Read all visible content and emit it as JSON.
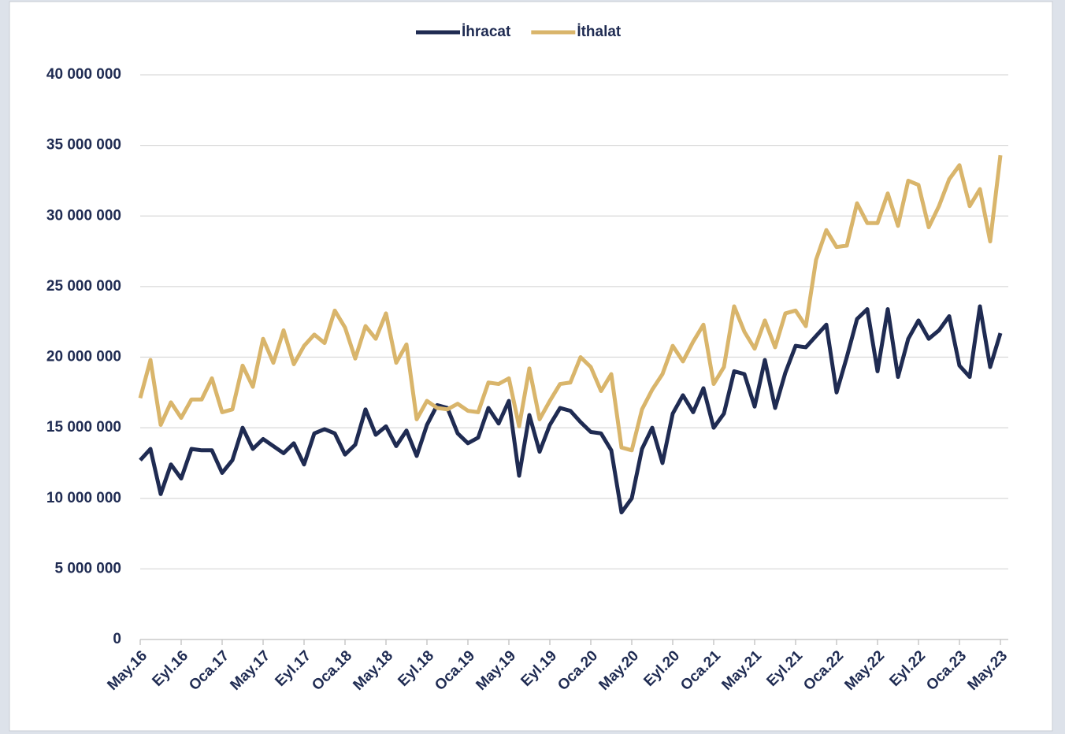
{
  "chart_data": {
    "type": "line",
    "legend": "top",
    "grid": true,
    "categories": [
      "May.16",
      null,
      null,
      null,
      "Eyl.16",
      null,
      null,
      null,
      "Oca.17",
      null,
      null,
      null,
      "May.17",
      null,
      null,
      null,
      "Eyl.17",
      null,
      null,
      null,
      "Oca.18",
      null,
      null,
      null,
      "May.18",
      null,
      null,
      null,
      "Eyl.18",
      null,
      null,
      null,
      "Oca.19",
      null,
      null,
      null,
      "May.19",
      null,
      null,
      null,
      "Eyl.19",
      null,
      null,
      null,
      "Oca.20",
      null,
      null,
      null,
      "May.20",
      null,
      null,
      null,
      "Eyl.20",
      null,
      null,
      null,
      "Oca.21",
      null,
      null,
      null,
      "May.21",
      null,
      null,
      null,
      "Eyl.21",
      null,
      null,
      null,
      "Oca.22",
      null,
      null,
      null,
      "May.22",
      null,
      null,
      null,
      "Eyl.22",
      null,
      null,
      null,
      "Oca.23",
      null,
      null,
      null,
      "May.23"
    ],
    "ylim": [
      0,
      40000000
    ],
    "yticks": [
      {
        "value": 0,
        "label": "0"
      },
      {
        "value": 5000000,
        "label": "5 000 000"
      },
      {
        "value": 10000000,
        "label": "10 000 000"
      },
      {
        "value": 15000000,
        "label": "15 000 000"
      },
      {
        "value": 20000000,
        "label": "20 000 000"
      },
      {
        "value": 25000000,
        "label": "25 000 000"
      },
      {
        "value": 30000000,
        "label": "30 000 000"
      },
      {
        "value": 35000000,
        "label": "35 000 000"
      },
      {
        "value": 40000000,
        "label": "40 000 000"
      }
    ],
    "series": [
      {
        "name": "İhracat",
        "color": "#1f2b52",
        "values": [
          12700000,
          13500000,
          10300000,
          12400000,
          11400000,
          13500000,
          13400000,
          13400000,
          11800000,
          12700000,
          15000000,
          13500000,
          14200000,
          13700000,
          13200000,
          13900000,
          12400000,
          14600000,
          14900000,
          14600000,
          13100000,
          13800000,
          16300000,
          14500000,
          15100000,
          13700000,
          14800000,
          13000000,
          15200000,
          16600000,
          16400000,
          14600000,
          13900000,
          14300000,
          16400000,
          15300000,
          16900000,
          11600000,
          15900000,
          13300000,
          15200000,
          16400000,
          16200000,
          15400000,
          14700000,
          14600000,
          13400000,
          9000000,
          10000000,
          13500000,
          15000000,
          12500000,
          16000000,
          17300000,
          16100000,
          17800000,
          15000000,
          16000000,
          19000000,
          18800000,
          16500000,
          19800000,
          16400000,
          18900000,
          20800000,
          20700000,
          21500000,
          22300000,
          17500000,
          20000000,
          22700000,
          23400000,
          19000000,
          23400000,
          18600000,
          21300000,
          22600000,
          21300000,
          21900000,
          22900000,
          19400000,
          18600000,
          23600000,
          19300000,
          21700000
        ]
      },
      {
        "name": "İthalat",
        "color": "#d9b56b",
        "values": [
          17100000,
          19800000,
          15200000,
          16800000,
          15700000,
          17000000,
          17000000,
          18500000,
          16100000,
          16300000,
          19400000,
          17900000,
          21300000,
          19600000,
          21900000,
          19500000,
          20800000,
          21600000,
          21000000,
          23300000,
          22100000,
          19900000,
          22200000,
          21300000,
          23100000,
          19600000,
          20900000,
          15600000,
          16900000,
          16400000,
          16300000,
          16700000,
          16200000,
          16100000,
          18200000,
          18100000,
          18500000,
          15100000,
          19200000,
          15600000,
          16900000,
          18100000,
          18200000,
          20000000,
          19300000,
          17600000,
          18800000,
          13600000,
          13400000,
          16300000,
          17700000,
          18800000,
          20800000,
          19700000,
          21100000,
          22300000,
          18100000,
          19300000,
          23600000,
          21800000,
          20600000,
          22600000,
          20700000,
          23100000,
          23300000,
          22200000,
          26900000,
          29000000,
          27800000,
          27900000,
          30900000,
          29500000,
          29500000,
          31600000,
          29300000,
          32500000,
          32200000,
          29200000,
          30700000,
          32600000,
          33600000,
          30700000,
          31900000,
          28200000,
          34300000
        ]
      }
    ]
  }
}
